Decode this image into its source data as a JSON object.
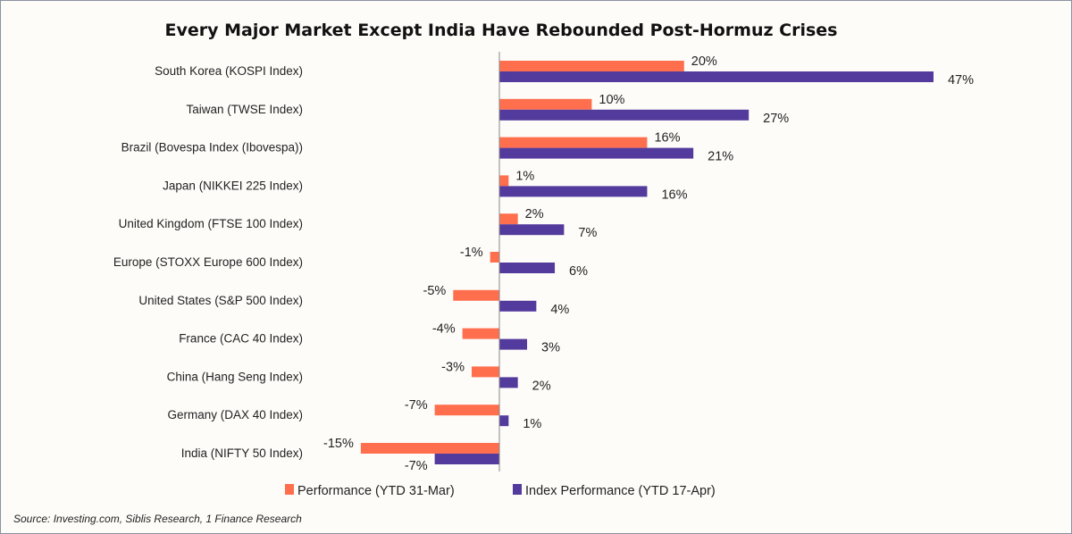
{
  "chart_data": {
    "type": "bar",
    "orientation": "horizontal",
    "title": "Every Major Market Except India Have Rebounded Post-Hormuz Crises",
    "categories": [
      "South Korea (KOSPI Index)",
      "Taiwan (TWSE Index)",
      "Brazil (Bovespa Index (Ibovespa))",
      "Japan (NIKKEI 225 Index)",
      "United Kingdom (FTSE 100 Index)",
      "Europe (STOXX Europe 600 Index)",
      "United States (S&P 500 Index)",
      "France (CAC 40 Index)",
      "China (Hang Seng Index)",
      "Germany (DAX 40 Index)",
      "India (NIFTY 50 Index)"
    ],
    "series": [
      {
        "name": "Performance (YTD 31-Mar)",
        "color": "#ff6f4e",
        "values": [
          20,
          10,
          16,
          1,
          2,
          -1,
          -5,
          -4,
          -3,
          -7,
          -15
        ]
      },
      {
        "name": "Index Performance (YTD 17-Apr)",
        "color": "#533a9d",
        "values": [
          47,
          27,
          21,
          16,
          7,
          6,
          4,
          3,
          2,
          1,
          -7
        ]
      }
    ],
    "value_format": "percent",
    "legend": "bottom",
    "grid": false,
    "source": "Source: Investing.com, Siblis Research, 1 Finance Research"
  }
}
